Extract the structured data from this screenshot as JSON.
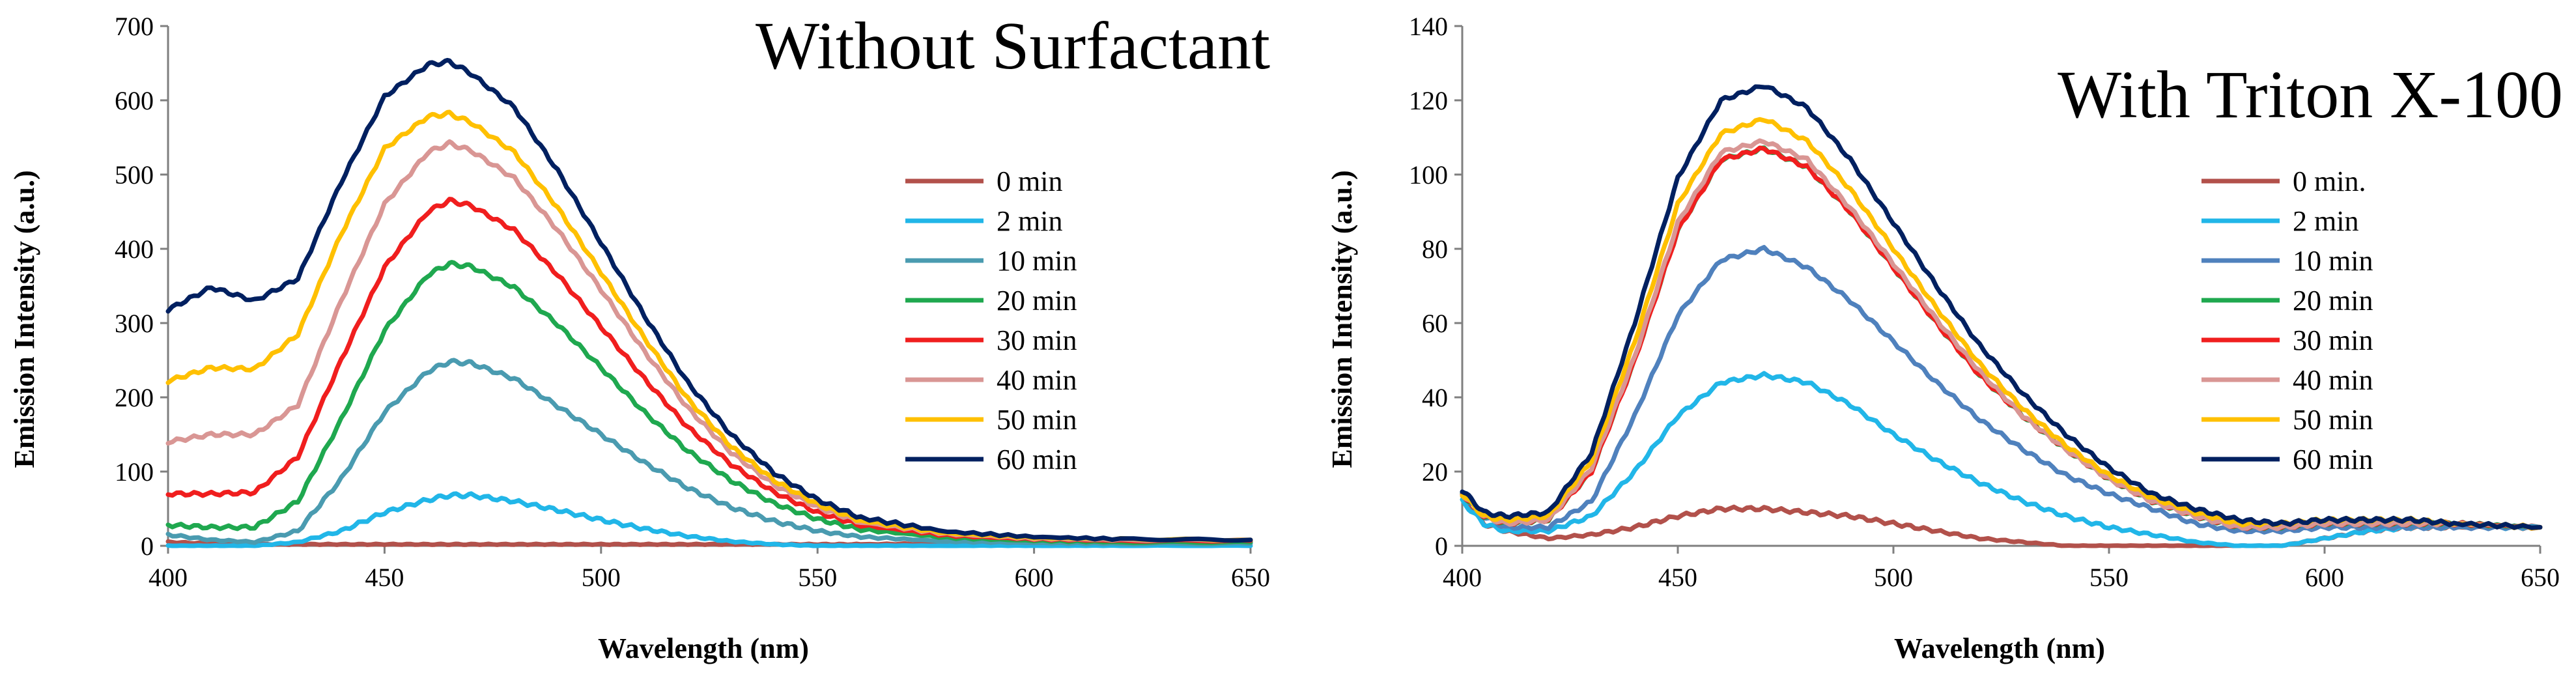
{
  "chart_data": [
    {
      "type": "line",
      "title": "Without Surfactant",
      "xlabel": "Wavelength (nm)",
      "ylabel": "Emission Intensity (a.u.)",
      "xlim": [
        400,
        650
      ],
      "ylim": [
        0,
        700
      ],
      "xticks": [
        400,
        450,
        500,
        550,
        600,
        650
      ],
      "yticks": [
        0,
        100,
        200,
        300,
        400,
        500,
        600,
        700
      ],
      "grid": false,
      "legend_position": "right",
      "x": [
        400,
        410,
        420,
        430,
        440,
        450,
        460,
        465,
        470,
        480,
        490,
        500,
        510,
        520,
        530,
        540,
        550,
        560,
        580,
        600,
        620,
        650
      ],
      "series": [
        {
          "name": "0 min",
          "color": "#B2514B",
          "values": [
            5,
            3,
            2,
            2,
            2,
            2,
            2,
            2,
            2,
            2,
            2,
            2,
            2,
            2,
            2,
            2,
            2,
            2,
            3,
            4,
            5,
            6
          ]
        },
        {
          "name": "2 min",
          "color": "#21B6E8",
          "values": [
            0,
            0,
            0,
            5,
            20,
            45,
            62,
            68,
            68,
            60,
            48,
            35,
            23,
            13,
            6,
            2,
            0,
            0,
            0,
            0,
            0,
            0
          ]
        },
        {
          "name": "10 min",
          "color": "#4A9BB0",
          "values": [
            15,
            8,
            5,
            20,
            90,
            180,
            235,
            248,
            246,
            225,
            188,
            150,
            112,
            78,
            52,
            33,
            20,
            12,
            6,
            4,
            3,
            3
          ]
        },
        {
          "name": "20 min",
          "color": "#1FA84F",
          "values": [
            28,
            25,
            25,
            60,
            170,
            290,
            365,
            380,
            376,
            348,
            298,
            240,
            180,
            128,
            88,
            57,
            36,
            22,
            11,
            7,
            5,
            5
          ]
        },
        {
          "name": "30 min",
          "color": "#F01E1E",
          "values": [
            70,
            70,
            72,
            120,
            250,
            375,
            450,
            465,
            458,
            425,
            365,
            295,
            225,
            160,
            110,
            72,
            45,
            28,
            14,
            9,
            7,
            7
          ]
        },
        {
          "name": "40 min",
          "color": "#D99694",
          "values": [
            140,
            150,
            150,
            190,
            330,
            460,
            530,
            542,
            532,
            495,
            425,
            345,
            262,
            186,
            126,
            82,
            52,
            32,
            16,
            10,
            8,
            8
          ]
        },
        {
          "name": "50 min",
          "color": "#FFC000",
          "values": [
            222,
            240,
            238,
            285,
            420,
            535,
            578,
            582,
            570,
            530,
            455,
            368,
            280,
            198,
            134,
            88,
            56,
            34,
            17,
            11,
            9,
            8
          ]
        },
        {
          "name": "60 min",
          "color": "#002060",
          "values": [
            318,
            348,
            330,
            360,
            490,
            605,
            648,
            652,
            636,
            590,
            505,
            408,
            310,
            220,
            150,
            98,
            62,
            38,
            19,
            12,
            9,
            8
          ]
        }
      ]
    },
    {
      "type": "line",
      "title": "With Triton X-100",
      "xlabel": "Wavelength (nm)",
      "ylabel": "Emission Intensity (a.u.)",
      "xlim": [
        400,
        650
      ],
      "ylim": [
        0,
        140
      ],
      "xticks": [
        400,
        450,
        500,
        550,
        600,
        650
      ],
      "yticks": [
        0,
        20,
        40,
        60,
        80,
        100,
        120,
        140
      ],
      "grid": false,
      "legend_position": "right",
      "x": [
        400,
        405,
        410,
        420,
        430,
        440,
        450,
        460,
        470,
        480,
        490,
        500,
        510,
        520,
        530,
        540,
        550,
        560,
        570,
        580,
        590,
        600,
        610,
        620,
        630,
        650
      ],
      "series": [
        {
          "name": "0 min.",
          "color": "#B2514B",
          "values": [
            13,
            6,
            4,
            2,
            3,
            5,
            8,
            10,
            10,
            9,
            8,
            6,
            4,
            2,
            1,
            0,
            0,
            0,
            0,
            0,
            0,
            2,
            4,
            5,
            5,
            5
          ]
        },
        {
          "name": "2 min",
          "color": "#21B6E8",
          "values": [
            12,
            6,
            4,
            4,
            8,
            20,
            35,
            44,
            46,
            44,
            38,
            30,
            23,
            17,
            12,
            8,
            5,
            3,
            1,
            0,
            0,
            2,
            4,
            5,
            5,
            5
          ]
        },
        {
          "name": "10 min",
          "color": "#4F81BD",
          "values": [
            14,
            8,
            5,
            5,
            12,
            35,
            62,
            77,
            80,
            75,
            66,
            55,
            44,
            34,
            26,
            19,
            14,
            10,
            6,
            4,
            4,
            5,
            5,
            5,
            5,
            5
          ]
        },
        {
          "name": "20 min",
          "color": "#1FA84F",
          "values": [
            14,
            8,
            6,
            7,
            20,
            50,
            85,
            104,
            107,
            102,
            90,
            75,
            60,
            46,
            35,
            26,
            18,
            12,
            8,
            5,
            5,
            6,
            6,
            6,
            6,
            5
          ]
        },
        {
          "name": "30 min",
          "color": "#F01E1E",
          "values": [
            14,
            8,
            6,
            7,
            20,
            50,
            85,
            104,
            107,
            102,
            90,
            75,
            60,
            46,
            35,
            26,
            18,
            12,
            8,
            5,
            5,
            6,
            6,
            6,
            6,
            5
          ]
        },
        {
          "name": "40 min",
          "color": "#D99694",
          "values": [
            14,
            8,
            6,
            7,
            21,
            51,
            87,
            106,
            109,
            104,
            91,
            76,
            61,
            47,
            35,
            26,
            18,
            12,
            8,
            5,
            5,
            6,
            6,
            6,
            6,
            5
          ]
        },
        {
          "name": "50 min",
          "color": "#FFC000",
          "values": [
            14,
            8,
            7,
            8,
            23,
            55,
            92,
            111,
            115,
            109,
            96,
            80,
            64,
            49,
            37,
            27,
            19,
            13,
            9,
            6,
            6,
            7,
            7,
            7,
            6,
            5
          ]
        },
        {
          "name": "60 min",
          "color": "#002060",
          "values": [
            15,
            9,
            8,
            9,
            25,
            60,
            99,
            120,
            124,
            118,
            104,
            87,
            70,
            54,
            41,
            30,
            21,
            14,
            10,
            7,
            6,
            7,
            7,
            7,
            6,
            5
          ]
        }
      ]
    }
  ]
}
